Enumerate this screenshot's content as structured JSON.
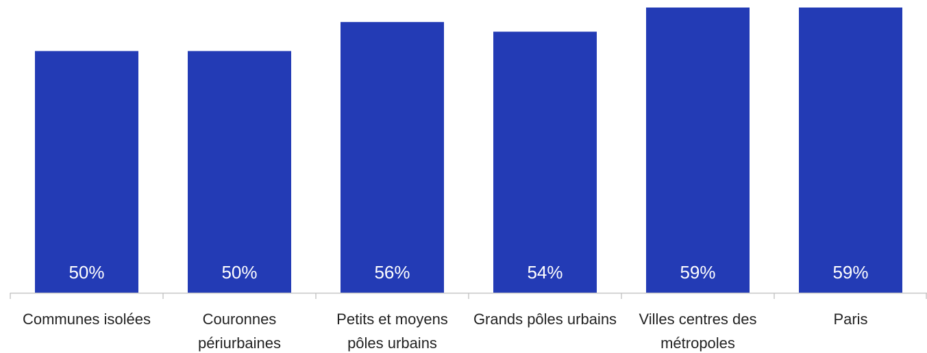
{
  "chart_data": {
    "type": "bar",
    "categories": [
      [
        "Communes isolées"
      ],
      [
        "Couronnes",
        "périurbaines"
      ],
      [
        "Petits et moyens",
        "pôles urbains"
      ],
      [
        "Grands pôles urbains"
      ],
      [
        "Villes centres des",
        "métropoles"
      ],
      [
        "Paris"
      ]
    ],
    "values": [
      50,
      50,
      56,
      54,
      59,
      59
    ],
    "value_labels": [
      "50%",
      "50%",
      "56%",
      "54%",
      "59%",
      "59%"
    ],
    "bar_color": "#233bb5",
    "axis_color": "#c8c8c8",
    "ylim": [
      0,
      59
    ],
    "grid": false,
    "legend": "none"
  }
}
